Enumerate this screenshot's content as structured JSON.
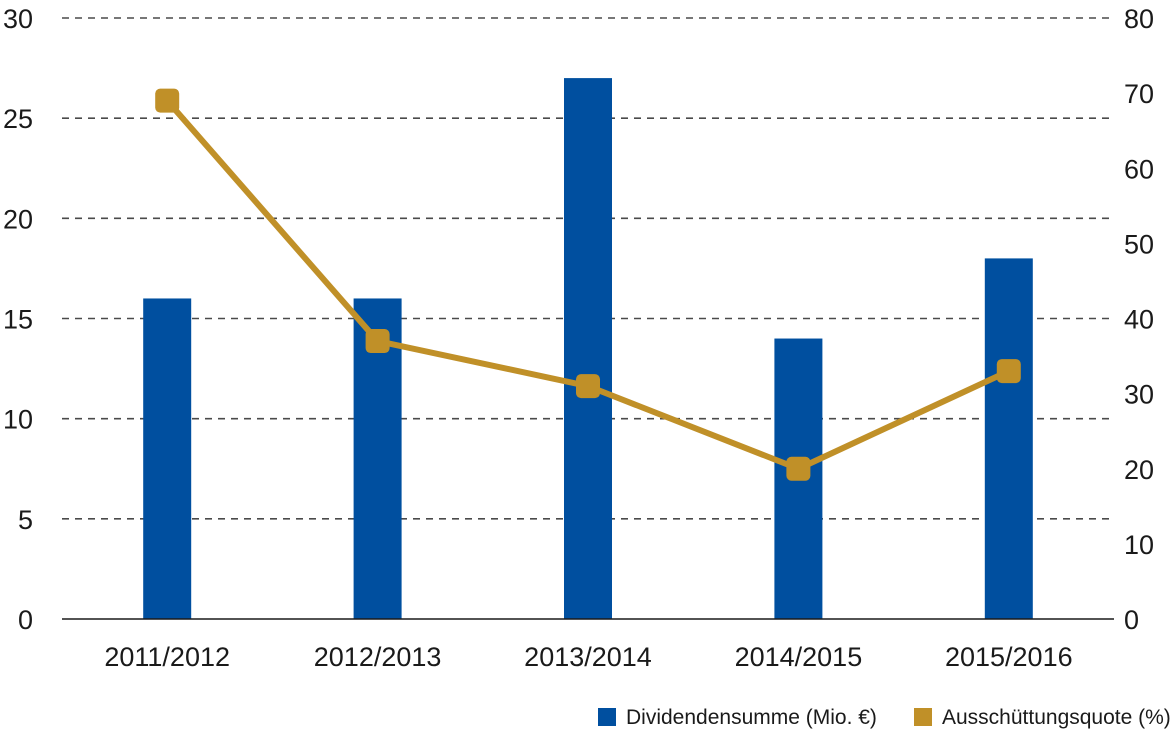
{
  "chart_data": {
    "type": "bar",
    "categories": [
      "2011/2012",
      "2012/2013",
      "2013/2014",
      "2014/2015",
      "2015/2016"
    ],
    "series": [
      {
        "name": "Dividendensumme (Mio. €)",
        "type": "bar",
        "axis": "left",
        "color": "#004f9f",
        "values": [
          16,
          16,
          27,
          14,
          18
        ]
      },
      {
        "name": "Ausschüttungsquote (%)",
        "type": "line",
        "axis": "right",
        "color": "#c09028",
        "values": [
          69,
          37,
          31,
          20,
          33
        ]
      }
    ],
    "y_left": {
      "lim": [
        0,
        30
      ],
      "ticks": [
        0,
        5,
        10,
        15,
        20,
        25,
        30
      ]
    },
    "y_right": {
      "lim": [
        0,
        80
      ],
      "ticks": [
        0,
        10,
        20,
        30,
        40,
        50,
        60,
        70,
        80
      ]
    },
    "grid": "horizontal-dashed",
    "legend": "bottom-right"
  }
}
